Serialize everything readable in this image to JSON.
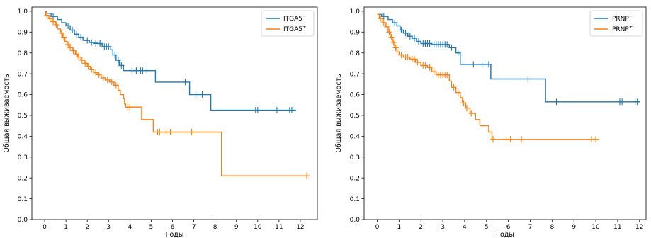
{
  "chart_data": [
    {
      "type": "line",
      "subtype": "kaplan-meier",
      "title": "",
      "xlabel": "Годы",
      "ylabel": "Общая выживаемость",
      "xlim": [
        -0.6,
        12.8
      ],
      "ylim": [
        0.0,
        1.02
      ],
      "xticks": [
        0,
        1,
        2,
        3,
        4,
        5,
        6,
        7,
        8,
        9,
        10,
        11,
        12
      ],
      "yticks": [
        0.0,
        0.1,
        0.2,
        0.3,
        0.4,
        0.5,
        0.6,
        0.7,
        0.8,
        0.9,
        1.0
      ],
      "grid": false,
      "legend_position": "top-right",
      "series": [
        {
          "name": "ITGA5",
          "name_sup": "−",
          "color": "#1f77b4",
          "steps": [
            [
              0,
              1.0
            ],
            [
              0.1,
              0.99
            ],
            [
              0.3,
              0.975
            ],
            [
              0.6,
              0.96
            ],
            [
              0.8,
              0.945
            ],
            [
              1.0,
              0.93
            ],
            [
              1.2,
              0.91
            ],
            [
              1.4,
              0.89
            ],
            [
              1.6,
              0.875
            ],
            [
              1.8,
              0.86
            ],
            [
              2.1,
              0.85
            ],
            [
              2.5,
              0.845
            ],
            [
              2.7,
              0.83
            ],
            [
              3.1,
              0.815
            ],
            [
              3.2,
              0.79
            ],
            [
              3.35,
              0.765
            ],
            [
              3.5,
              0.74
            ],
            [
              3.7,
              0.715
            ],
            [
              5.2,
              0.66
            ],
            [
              6.8,
              0.6
            ],
            [
              7.8,
              0.525
            ],
            [
              11.8,
              0.525
            ]
          ],
          "censored": [
            [
              0.4,
              0.975
            ],
            [
              1.1,
              0.93
            ],
            [
              1.3,
              0.91
            ],
            [
              1.5,
              0.89
            ],
            [
              1.7,
              0.875
            ],
            [
              2.0,
              0.86
            ],
            [
              2.2,
              0.85
            ],
            [
              2.4,
              0.845
            ],
            [
              2.6,
              0.845
            ],
            [
              2.8,
              0.83
            ],
            [
              2.9,
              0.83
            ],
            [
              3.0,
              0.83
            ],
            [
              3.3,
              0.79
            ],
            [
              3.45,
              0.765
            ],
            [
              3.6,
              0.74
            ],
            [
              4.1,
              0.715
            ],
            [
              4.3,
              0.715
            ],
            [
              4.5,
              0.715
            ],
            [
              4.6,
              0.715
            ],
            [
              4.8,
              0.715
            ],
            [
              6.6,
              0.66
            ],
            [
              7.1,
              0.6
            ],
            [
              7.4,
              0.6
            ],
            [
              9.9,
              0.525
            ],
            [
              10.0,
              0.525
            ],
            [
              10.9,
              0.525
            ],
            [
              11.5,
              0.525
            ],
            [
              11.6,
              0.525
            ]
          ]
        },
        {
          "name": "ITGA5",
          "name_sup": "+",
          "color": "#ff7f0e",
          "steps": [
            [
              0,
              1.0
            ],
            [
              0.05,
              0.98
            ],
            [
              0.2,
              0.965
            ],
            [
              0.35,
              0.95
            ],
            [
              0.5,
              0.935
            ],
            [
              0.6,
              0.915
            ],
            [
              0.75,
              0.895
            ],
            [
              0.85,
              0.875
            ],
            [
              0.95,
              0.855
            ],
            [
              1.05,
              0.84
            ],
            [
              1.15,
              0.825
            ],
            [
              1.3,
              0.81
            ],
            [
              1.45,
              0.795
            ],
            [
              1.55,
              0.78
            ],
            [
              1.7,
              0.765
            ],
            [
              1.85,
              0.75
            ],
            [
              2.0,
              0.735
            ],
            [
              2.15,
              0.72
            ],
            [
              2.3,
              0.705
            ],
            [
              2.5,
              0.695
            ],
            [
              2.65,
              0.68
            ],
            [
              2.85,
              0.67
            ],
            [
              3.05,
              0.66
            ],
            [
              3.25,
              0.645
            ],
            [
              3.45,
              0.62
            ],
            [
              3.55,
              0.6
            ],
            [
              3.7,
              0.58
            ],
            [
              3.75,
              0.555
            ],
            [
              3.8,
              0.54
            ],
            [
              4.55,
              0.48
            ],
            [
              5.1,
              0.42
            ],
            [
              8.3,
              0.21
            ],
            [
              12.4,
              0.21
            ]
          ],
          "censored": [
            [
              0.1,
              0.98
            ],
            [
              0.25,
              0.965
            ],
            [
              0.4,
              0.95
            ],
            [
              0.55,
              0.935
            ],
            [
              0.8,
              0.895
            ],
            [
              0.9,
              0.875
            ],
            [
              1.1,
              0.84
            ],
            [
              1.2,
              0.825
            ],
            [
              1.35,
              0.81
            ],
            [
              1.5,
              0.795
            ],
            [
              1.6,
              0.78
            ],
            [
              1.75,
              0.765
            ],
            [
              1.9,
              0.75
            ],
            [
              2.05,
              0.735
            ],
            [
              2.2,
              0.72
            ],
            [
              2.4,
              0.705
            ],
            [
              2.55,
              0.695
            ],
            [
              2.75,
              0.68
            ],
            [
              2.95,
              0.67
            ],
            [
              3.15,
              0.66
            ],
            [
              3.35,
              0.645
            ],
            [
              3.9,
              0.54
            ],
            [
              4.0,
              0.54
            ],
            [
              5.3,
              0.42
            ],
            [
              5.4,
              0.42
            ],
            [
              5.7,
              0.42
            ],
            [
              5.9,
              0.42
            ],
            [
              6.9,
              0.42
            ],
            [
              12.3,
              0.21
            ]
          ]
        }
      ]
    },
    {
      "type": "line",
      "subtype": "kaplan-meier",
      "title": "",
      "xlabel": "Годы",
      "ylabel": "Общая выживаемость",
      "xlim": [
        -0.6,
        12.3
      ],
      "ylim": [
        0.0,
        1.02
      ],
      "xticks": [
        0,
        1,
        2,
        3,
        4,
        5,
        6,
        7,
        8,
        9,
        10,
        11,
        12
      ],
      "yticks": [
        0.0,
        0.1,
        0.2,
        0.3,
        0.4,
        0.5,
        0.6,
        0.7,
        0.8,
        0.9,
        1.0
      ],
      "grid": false,
      "legend_position": "top-right",
      "series": [
        {
          "name": "PRNP",
          "name_sup": "−",
          "color": "#1f77b4",
          "steps": [
            [
              0,
              0.985
            ],
            [
              0.2,
              0.975
            ],
            [
              0.5,
              0.96
            ],
            [
              0.7,
              0.945
            ],
            [
              0.9,
              0.93
            ],
            [
              1.05,
              0.91
            ],
            [
              1.2,
              0.895
            ],
            [
              1.4,
              0.88
            ],
            [
              1.6,
              0.87
            ],
            [
              1.8,
              0.855
            ],
            [
              2.0,
              0.845
            ],
            [
              2.5,
              0.84
            ],
            [
              3.3,
              0.825
            ],
            [
              3.6,
              0.8
            ],
            [
              3.8,
              0.745
            ],
            [
              5.2,
              0.675
            ],
            [
              7.7,
              0.565
            ],
            [
              12.0,
              0.565
            ]
          ],
          "censored": [
            [
              0.3,
              0.975
            ],
            [
              0.8,
              0.945
            ],
            [
              1.1,
              0.91
            ],
            [
              1.3,
              0.895
            ],
            [
              1.5,
              0.88
            ],
            [
              1.7,
              0.87
            ],
            [
              1.9,
              0.855
            ],
            [
              2.1,
              0.845
            ],
            [
              2.2,
              0.845
            ],
            [
              2.3,
              0.845
            ],
            [
              2.4,
              0.845
            ],
            [
              2.6,
              0.84
            ],
            [
              2.7,
              0.84
            ],
            [
              2.8,
              0.84
            ],
            [
              2.9,
              0.84
            ],
            [
              3.0,
              0.84
            ],
            [
              3.1,
              0.84
            ],
            [
              3.2,
              0.84
            ],
            [
              3.4,
              0.825
            ],
            [
              3.7,
              0.8
            ],
            [
              4.4,
              0.745
            ],
            [
              4.8,
              0.745
            ],
            [
              5.1,
              0.745
            ],
            [
              6.9,
              0.675
            ],
            [
              8.2,
              0.565
            ],
            [
              11.1,
              0.565
            ],
            [
              11.2,
              0.565
            ],
            [
              11.8,
              0.565
            ],
            [
              11.9,
              0.565
            ]
          ]
        },
        {
          "name": "PRNP",
          "name_sup": "+",
          "color": "#ff7f0e",
          "steps": [
            [
              0,
              0.985
            ],
            [
              0.1,
              0.965
            ],
            [
              0.25,
              0.945
            ],
            [
              0.4,
              0.925
            ],
            [
              0.5,
              0.9
            ],
            [
              0.6,
              0.875
            ],
            [
              0.7,
              0.85
            ],
            [
              0.8,
              0.825
            ],
            [
              0.9,
              0.805
            ],
            [
              1.0,
              0.79
            ],
            [
              1.2,
              0.78
            ],
            [
              1.5,
              0.77
            ],
            [
              1.75,
              0.755
            ],
            [
              2.0,
              0.74
            ],
            [
              2.3,
              0.73
            ],
            [
              2.5,
              0.71
            ],
            [
              2.7,
              0.695
            ],
            [
              3.3,
              0.665
            ],
            [
              3.4,
              0.635
            ],
            [
              3.6,
              0.61
            ],
            [
              3.8,
              0.585
            ],
            [
              3.9,
              0.56
            ],
            [
              4.05,
              0.535
            ],
            [
              4.25,
              0.51
            ],
            [
              4.5,
              0.48
            ],
            [
              4.7,
              0.45
            ],
            [
              5.1,
              0.42
            ],
            [
              5.25,
              0.385
            ],
            [
              10.1,
              0.385
            ]
          ],
          "censored": [
            [
              0.15,
              0.965
            ],
            [
              0.3,
              0.945
            ],
            [
              0.45,
              0.925
            ],
            [
              0.55,
              0.9
            ],
            [
              0.65,
              0.875
            ],
            [
              0.75,
              0.85
            ],
            [
              0.85,
              0.825
            ],
            [
              1.1,
              0.79
            ],
            [
              1.3,
              0.78
            ],
            [
              1.4,
              0.78
            ],
            [
              1.6,
              0.77
            ],
            [
              1.7,
              0.77
            ],
            [
              1.85,
              0.755
            ],
            [
              2.1,
              0.74
            ],
            [
              2.2,
              0.74
            ],
            [
              2.4,
              0.73
            ],
            [
              2.6,
              0.71
            ],
            [
              2.8,
              0.695
            ],
            [
              2.9,
              0.695
            ],
            [
              3.0,
              0.695
            ],
            [
              3.1,
              0.695
            ],
            [
              3.2,
              0.695
            ],
            [
              3.5,
              0.635
            ],
            [
              3.7,
              0.61
            ],
            [
              3.95,
              0.56
            ],
            [
              4.1,
              0.535
            ],
            [
              4.3,
              0.51
            ],
            [
              5.3,
              0.385
            ],
            [
              5.9,
              0.385
            ],
            [
              6.1,
              0.385
            ],
            [
              6.6,
              0.385
            ],
            [
              9.8,
              0.385
            ],
            [
              10.0,
              0.385
            ]
          ]
        }
      ]
    }
  ]
}
